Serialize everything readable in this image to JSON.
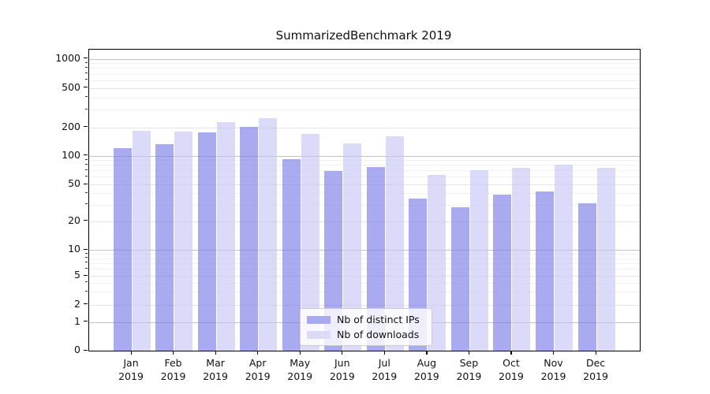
{
  "title": "SummarizedBenchmark 2019",
  "legend": {
    "items": [
      {
        "label": "Nb of distinct IPs",
        "color": "#aaaaf0"
      },
      {
        "label": "Nb of downloads",
        "color": "#dbdbf8"
      }
    ]
  },
  "colors": {
    "ips_bar": "rgba(128,128,232,0.67)",
    "downloads_bar": "rgba(197,197,245,0.62)",
    "grid_decade": "#c3c3c3",
    "grid_labeled": "#e4e4e4",
    "grid_minor": "#f1f1f1",
    "spine": "#000000",
    "text": "#111111"
  },
  "chart_data": {
    "type": "bar",
    "title": "SummarizedBenchmark 2019",
    "categories": [
      "Jan 2019",
      "Feb 2019",
      "Mar 2019",
      "Apr 2019",
      "May 2019",
      "Jun 2019",
      "Jul 2019",
      "Aug 2019",
      "Sep 2019",
      "Oct 2019",
      "Nov 2019",
      "Dec 2019"
    ],
    "series": [
      {
        "name": "Nb of distinct IPs",
        "values": [
          120,
          132,
          178,
          203,
          92,
          69,
          76,
          35,
          28,
          39,
          42,
          31
        ]
      },
      {
        "name": "Nb of downloads",
        "values": [
          183,
          180,
          225,
          247,
          170,
          134,
          160,
          63,
          70,
          75,
          80,
          75
        ]
      }
    ],
    "xlabel": "",
    "ylabel": "",
    "yscale": "symlog",
    "yticks": [
      0,
      1,
      2,
      5,
      10,
      20,
      50,
      100,
      200,
      500,
      1000
    ],
    "ylim": [
      0,
      1200
    ],
    "grid": true,
    "legend_position": "lower center"
  }
}
